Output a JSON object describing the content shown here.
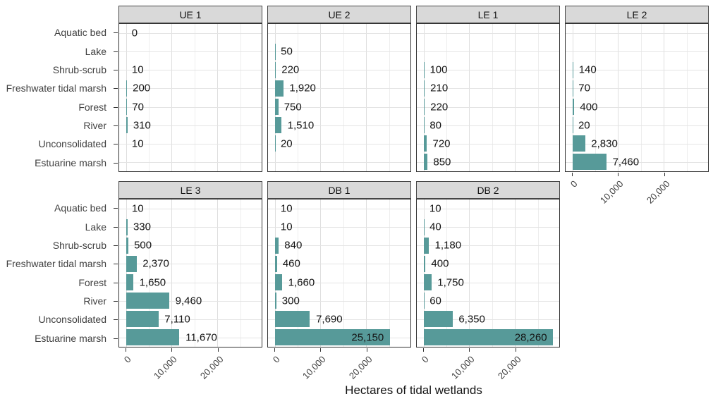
{
  "chart_data": {
    "type": "bar",
    "orientation": "horizontal",
    "title": "",
    "xlabel": "Hectares of tidal wetlands",
    "ylabel": "",
    "categories": [
      "Aquatic bed",
      "Lake",
      "Shrub-scrub",
      "Freshwater tidal marsh",
      "Forest",
      "River",
      "Unconsolidated",
      "Estuarine marsh"
    ],
    "x_tick_labels": [
      "0",
      "10,000",
      "20,000"
    ],
    "x_tick_values": [
      0,
      10000,
      20000
    ],
    "x_minor_gridlines": [
      5000,
      15000,
      25000
    ],
    "xlim": [
      -1500,
      29700
    ],
    "grid": true,
    "legend": false,
    "bar_color": "#579a99",
    "strip_background": "#d9d9d9",
    "panels": [
      {
        "label": "UE 1",
        "row": 0,
        "col": 0,
        "show_axis": false,
        "values": [
          0,
          null,
          10,
          200,
          70,
          310,
          10,
          null
        ]
      },
      {
        "label": "UE 2",
        "row": 0,
        "col": 1,
        "show_axis": false,
        "values": [
          null,
          50,
          220,
          1920,
          750,
          1510,
          20,
          null
        ]
      },
      {
        "label": "LE 1",
        "row": 0,
        "col": 2,
        "show_axis": false,
        "values": [
          null,
          null,
          100,
          210,
          220,
          80,
          720,
          850
        ]
      },
      {
        "label": "LE 2",
        "row": 0,
        "col": 3,
        "show_axis": true,
        "values": [
          null,
          null,
          140,
          70,
          400,
          20,
          2830,
          7460
        ]
      },
      {
        "label": "LE 3",
        "row": 1,
        "col": 0,
        "show_axis": true,
        "values": [
          10,
          330,
          500,
          2370,
          1650,
          9460,
          7110,
          11670
        ]
      },
      {
        "label": "DB 1",
        "row": 1,
        "col": 1,
        "show_axis": true,
        "values": [
          10,
          10,
          840,
          460,
          1660,
          300,
          7690,
          25150
        ]
      },
      {
        "label": "DB 2",
        "row": 1,
        "col": 2,
        "show_axis": true,
        "values": [
          10,
          40,
          1180,
          400,
          1750,
          60,
          6350,
          28260
        ]
      }
    ]
  }
}
